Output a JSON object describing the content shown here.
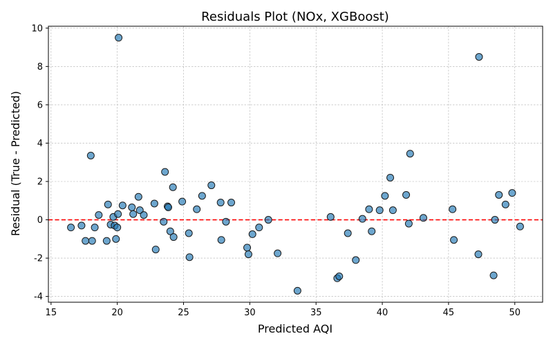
{
  "chart_data": {
    "type": "scatter",
    "title": "Residuals Plot (NOx, XGBoost)",
    "xlabel": "Predicted AQI",
    "ylabel": "Residual (True - Predicted)",
    "xlim": [
      14.8,
      52.1
    ],
    "ylim": [
      -4.3,
      10.1
    ],
    "xticks": [
      15,
      20,
      25,
      30,
      35,
      40,
      45,
      50
    ],
    "yticks": [
      -4,
      -2,
      0,
      2,
      4,
      6,
      8,
      10
    ],
    "grid": true,
    "reference_line": {
      "y": 0,
      "color": "#ff0000",
      "style": "dashed"
    },
    "marker_color": "#1f77b4",
    "points": [
      {
        "x": 16.5,
        "y": -0.4
      },
      {
        "x": 17.3,
        "y": -0.3
      },
      {
        "x": 17.6,
        "y": -1.1
      },
      {
        "x": 18.0,
        "y": 3.35
      },
      {
        "x": 18.1,
        "y": -1.1
      },
      {
        "x": 18.3,
        "y": -0.4
      },
      {
        "x": 18.6,
        "y": 0.25
      },
      {
        "x": 19.2,
        "y": -1.1
      },
      {
        "x": 19.3,
        "y": 0.8
      },
      {
        "x": 19.5,
        "y": -0.25
      },
      {
        "x": 19.7,
        "y": 0.15
      },
      {
        "x": 19.8,
        "y": -0.3
      },
      {
        "x": 19.9,
        "y": -1.0
      },
      {
        "x": 20.0,
        "y": -0.4
      },
      {
        "x": 20.05,
        "y": 0.3
      },
      {
        "x": 20.1,
        "y": 9.5
      },
      {
        "x": 20.4,
        "y": 0.75
      },
      {
        "x": 21.1,
        "y": 0.65
      },
      {
        "x": 21.2,
        "y": 0.3
      },
      {
        "x": 21.6,
        "y": 1.2
      },
      {
        "x": 21.7,
        "y": 0.5
      },
      {
        "x": 22.0,
        "y": 0.25
      },
      {
        "x": 22.8,
        "y": 0.85
      },
      {
        "x": 22.9,
        "y": -1.55
      },
      {
        "x": 23.5,
        "y": -0.1
      },
      {
        "x": 23.6,
        "y": 2.5
      },
      {
        "x": 23.8,
        "y": 0.7
      },
      {
        "x": 23.85,
        "y": 0.65
      },
      {
        "x": 24.0,
        "y": -0.6
      },
      {
        "x": 24.2,
        "y": 1.7
      },
      {
        "x": 24.25,
        "y": -0.9
      },
      {
        "x": 24.9,
        "y": 0.95
      },
      {
        "x": 25.4,
        "y": -0.7
      },
      {
        "x": 25.45,
        "y": -1.95
      },
      {
        "x": 26.0,
        "y": 0.55
      },
      {
        "x": 26.4,
        "y": 1.25
      },
      {
        "x": 27.1,
        "y": 1.8
      },
      {
        "x": 27.8,
        "y": 0.9
      },
      {
        "x": 27.85,
        "y": -1.05
      },
      {
        "x": 28.2,
        "y": -0.1
      },
      {
        "x": 28.6,
        "y": 0.9
      },
      {
        "x": 29.8,
        "y": -1.45
      },
      {
        "x": 29.9,
        "y": -1.8
      },
      {
        "x": 30.2,
        "y": -0.75
      },
      {
        "x": 30.7,
        "y": -0.4
      },
      {
        "x": 31.4,
        "y": 0.0
      },
      {
        "x": 32.1,
        "y": -1.75
      },
      {
        "x": 33.6,
        "y": -3.7
      },
      {
        "x": 36.1,
        "y": 0.15
      },
      {
        "x": 36.6,
        "y": -3.05
      },
      {
        "x": 36.75,
        "y": -2.95
      },
      {
        "x": 37.4,
        "y": -0.7
      },
      {
        "x": 38.0,
        "y": -2.1
      },
      {
        "x": 38.5,
        "y": 0.05
      },
      {
        "x": 39.0,
        "y": 0.55
      },
      {
        "x": 39.2,
        "y": -0.6
      },
      {
        "x": 39.8,
        "y": 0.5
      },
      {
        "x": 40.2,
        "y": 1.25
      },
      {
        "x": 40.6,
        "y": 2.2
      },
      {
        "x": 40.8,
        "y": 0.5
      },
      {
        "x": 41.8,
        "y": 1.3
      },
      {
        "x": 42.0,
        "y": -0.2
      },
      {
        "x": 42.1,
        "y": 3.45
      },
      {
        "x": 43.1,
        "y": 0.1
      },
      {
        "x": 45.3,
        "y": 0.55
      },
      {
        "x": 45.4,
        "y": -1.05
      },
      {
        "x": 47.3,
        "y": 8.5
      },
      {
        "x": 47.25,
        "y": -1.8
      },
      {
        "x": 48.4,
        "y": -2.9
      },
      {
        "x": 48.5,
        "y": 0.0
      },
      {
        "x": 48.8,
        "y": 1.3
      },
      {
        "x": 49.3,
        "y": 0.8
      },
      {
        "x": 49.8,
        "y": 1.4
      },
      {
        "x": 50.4,
        "y": -0.35
      }
    ]
  }
}
